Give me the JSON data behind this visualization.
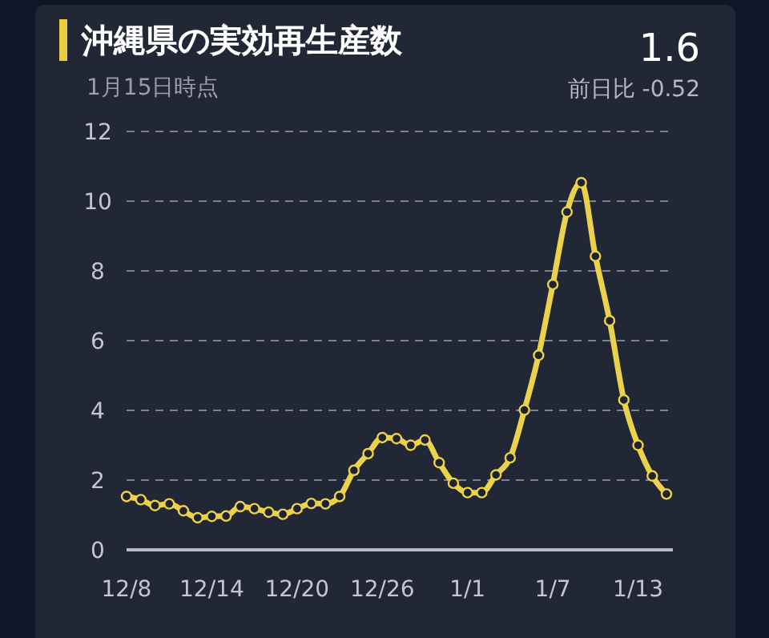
{
  "chart_data": {
    "type": "line",
    "title": "沖縄県の実効再生産数",
    "subtitle": "1月15日時点",
    "annotations": [
      "1.6",
      "前日比 -0.52"
    ],
    "categories": [
      "12/8",
      null,
      null,
      null,
      null,
      null,
      "12/14",
      null,
      null,
      null,
      null,
      null,
      "12/20",
      null,
      null,
      null,
      null,
      null,
      "12/26",
      null,
      null,
      null,
      null,
      null,
      "1/1",
      null,
      null,
      null,
      null,
      null,
      "1/7",
      null,
      null,
      null,
      null,
      null,
      "1/13",
      null,
      null
    ],
    "series": [
      {
        "color": "#ecd24a",
        "values": [
          1.53,
          1.44,
          1.27,
          1.32,
          1.12,
          0.92,
          0.96,
          0.97,
          1.24,
          1.18,
          1.08,
          1.02,
          1.18,
          1.33,
          1.32,
          1.53,
          2.28,
          2.76,
          3.22,
          3.19,
          3.0,
          3.15,
          2.5,
          1.91,
          1.64,
          1.64,
          2.15,
          2.64,
          4.01,
          5.58,
          7.61,
          9.69,
          10.53,
          8.42,
          6.57,
          4.3,
          3.0,
          2.12,
          1.6
        ]
      }
    ],
    "ylim": [
      0,
      12
    ],
    "yticks": [
      0,
      2,
      4,
      6,
      8,
      10,
      12
    ],
    "grid": "y",
    "marker": "circle",
    "line_style": "solid"
  }
}
